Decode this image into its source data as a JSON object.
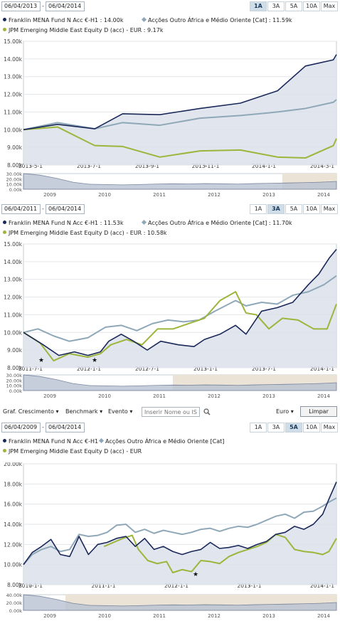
{
  "panels": [
    {
      "start_date": "06/04/2013",
      "end_date": "06/04/2014",
      "separator": "-",
      "active_range": "1A",
      "legend": [
        {
          "label": "Franklin MENA Fund N Acc €-H1 : 14.00k"
        },
        {
          "label": "Acções Outro África e Médio Oriente [Cat] : 11.59k"
        },
        {
          "label": "JPM Emerging Middle East Equity D (acc) - EUR : 9.17k"
        }
      ],
      "chart_data": {
        "type": "area",
        "x_ticks": [
          "2013-5-1",
          "2013-7-1",
          "2013-9-1",
          "2013-11-1",
          "2014-1-1",
          "2014-3-1"
        ],
        "y_ticks": [
          "8.00k",
          "9.00k",
          "10.00k",
          "11.00k",
          "12.00k",
          "13.00k",
          "14.00k",
          "15.00k"
        ],
        "xlim": [
          2013.26,
          2014.27
        ],
        "ylim": [
          8000,
          15000
        ],
        "series": [
          {
            "name": "Franklin MENA Fund N Acc €-H1",
            "x": [
              2013.26,
              2013.37,
              2013.49,
              2013.58,
              2013.7,
              2013.83,
              2013.96,
              2014.08,
              2014.17,
              2014.26,
              2014.27
            ],
            "y": [
              10000,
              10300,
              10050,
              10900,
              10850,
              11200,
              11500,
              12200,
              13600,
              13950,
              14250
            ]
          },
          {
            "name": "Acções Outro África e Médio Oriente [Cat]",
            "x": [
              2013.26,
              2013.37,
              2013.49,
              2013.58,
              2013.7,
              2013.83,
              2013.96,
              2014.08,
              2014.17,
              2014.26,
              2014.27
            ],
            "y": [
              10000,
              10400,
              10050,
              10400,
              10250,
              10650,
              10800,
              11000,
              11200,
              11550,
              11700
            ]
          },
          {
            "name": "JPM Emerging Middle East Equity D (acc) - EUR",
            "x": [
              2013.26,
              2013.37,
              2013.49,
              2013.58,
              2013.7,
              2013.83,
              2013.96,
              2014.08,
              2014.17,
              2014.26,
              2014.27
            ],
            "y": [
              10000,
              10150,
              9100,
              9050,
              8450,
              8800,
              8850,
              8450,
              8400,
              9100,
              9500
            ]
          }
        ],
        "navigator": {
          "x_ticks": [
            "2009",
            "2010",
            "2011",
            "2012",
            "2013",
            "2014"
          ],
          "y_ticks": [
            "30.00k",
            "20.00k",
            "10.00k",
            "0.00k"
          ]
        }
      }
    },
    {
      "start_date": "06/04/2011",
      "end_date": "06/04/2014",
      "separator": "-",
      "active_range": "3A",
      "legend": [
        {
          "label": "Franklin MENA Fund N Acc €-H1 : 11.53k"
        },
        {
          "label": "Acções Outro África e Médio Oriente [Cat] : 11.70k"
        },
        {
          "label": "JPM Emerging Middle East Equity D (acc) - EUR : 10.58k"
        }
      ],
      "chart_data": {
        "type": "area",
        "x_ticks": [
          "2011-7-1",
          "2012-1-1",
          "2012-7-1",
          "2013-1-1",
          "2013-7-1",
          "2014-1-1"
        ],
        "y_ticks": [
          "8.00k",
          "9.00k",
          "10.00k",
          "11.00k",
          "12.00k",
          "13.00k",
          "14.00k",
          "15.00k"
        ],
        "xlim": [
          2011.26,
          2014.27
        ],
        "ylim": [
          8000,
          15000
        ],
        "series": [
          {
            "name": "Franklin MENA Fund N Acc €-H1",
            "x": [
              2011.26,
              2011.45,
              2011.6,
              2011.75,
              2011.88,
              2012.0,
              2012.08,
              2012.2,
              2012.32,
              2012.45,
              2012.58,
              2012.75,
              2012.9,
              2013.0,
              2013.15,
              2013.3,
              2013.4,
              2013.55,
              2013.7,
              2013.85,
              2014.0,
              2014.1,
              2014.2,
              2014.27
            ],
            "y": [
              10000,
              9300,
              8700,
              8900,
              8700,
              8900,
              9500,
              9900,
              9500,
              9000,
              9500,
              9300,
              9200,
              9600,
              9900,
              10400,
              9900,
              11200,
              11400,
              11700,
              12700,
              13300,
              14200,
              14700
            ]
          },
          {
            "name": "Acções Outro África e Médio Oriente [Cat]",
            "x": [
              2011.26,
              2011.4,
              2011.55,
              2011.7,
              2011.88,
              2012.05,
              2012.2,
              2012.35,
              2012.5,
              2012.65,
              2012.8,
              2012.95,
              2013.1,
              2013.3,
              2013.4,
              2013.55,
              2013.7,
              2013.85,
              2014.0,
              2014.15,
              2014.27
            ],
            "y": [
              10000,
              10200,
              9800,
              9500,
              9700,
              10300,
              10400,
              10100,
              10500,
              10700,
              10600,
              10700,
              11200,
              11800,
              11500,
              11700,
              11600,
              12100,
              12300,
              12700,
              13200
            ]
          },
          {
            "name": "JPM Emerging Middle East Equity D (acc) - EUR",
            "x": [
              2011.26,
              2011.42,
              2011.55,
              2011.7,
              2011.88,
              2012.0,
              2012.1,
              2012.25,
              2012.4,
              2012.55,
              2012.7,
              2012.85,
              2013.0,
              2013.15,
              2013.3,
              2013.4,
              2013.5,
              2013.62,
              2013.75,
              2013.9,
              2014.05,
              2014.18,
              2014.27
            ],
            "y": [
              10000,
              9400,
              8400,
              8800,
              8600,
              8800,
              9300,
              9600,
              9300,
              10200,
              10200,
              10500,
              10800,
              11800,
              12300,
              11100,
              11000,
              10200,
              10800,
              10700,
              10200,
              10200,
              11600
            ]
          }
        ],
        "markers": [
          "★",
          "★"
        ],
        "navigator": {
          "x_ticks": [
            "2009",
            "2010",
            "2011",
            "2012",
            "2013",
            "2014"
          ],
          "y_ticks": [
            "30.00k",
            "20.00k",
            "10.00k",
            "0.00k"
          ]
        }
      }
    },
    {
      "start_date": "06/04/2009",
      "end_date": "06/04/2014",
      "separator": "-",
      "active_range": "5A",
      "legend": [
        {
          "label": "Franklin MENA Fund N Acc €-H1"
        },
        {
          "label": "Acções Outro África e Médio Oriente [Cat]"
        },
        {
          "label": "JPM Emerging Middle East Equity D (acc) - EUR"
        }
      ],
      "chart_data": {
        "type": "area",
        "x_ticks": [
          "2010-1-1",
          "2011-1-1",
          "2012-1-1",
          "2013-1-1",
          "2014-1-1"
        ],
        "y_ticks": [
          "8.00k",
          "10.00k",
          "12.00k",
          "14.00k",
          "16.00k",
          "18.00k",
          "20.00k"
        ],
        "xlim": [
          2009.26,
          2014.27
        ],
        "ylim": [
          8000,
          20000
        ],
        "series": [
          {
            "name": "Franklin MENA Fund N Acc €-H1",
            "x": [
              2009.26,
              2009.4,
              2009.55,
              2009.7,
              2009.85,
              2010.0,
              2010.15,
              2010.3,
              2010.45,
              2010.6,
              2010.75,
              2010.9,
              2011.05,
              2011.2,
              2011.35,
              2011.5,
              2011.65,
              2011.8,
              2011.95,
              2012.1,
              2012.25,
              2012.4,
              2012.55,
              2012.7,
              2012.85,
              2013.0,
              2013.15,
              2013.3,
              2013.45,
              2013.6,
              2013.75,
              2013.9,
              2014.05,
              2014.15,
              2014.27
            ],
            "y": [
              10000,
              11200,
              11800,
              12500,
              11000,
              10800,
              12800,
              11000,
              12000,
              12200,
              12600,
              12800,
              11800,
              12600,
              11500,
              11800,
              11300,
              11000,
              11300,
              11500,
              12200,
              11600,
              11700,
              11900,
              11600,
              12000,
              12300,
              13000,
              13200,
              13800,
              13500,
              14000,
              15000,
              16500,
              18200
            ]
          },
          {
            "name": "Acções Outro África e Médio Oriente [Cat]",
            "x": [
              2009.26,
              2009.4,
              2009.55,
              2009.7,
              2009.85,
              2010.0,
              2010.15,
              2010.3,
              2010.45,
              2010.6,
              2010.75,
              2010.9,
              2011.05,
              2011.2,
              2011.35,
              2011.5,
              2011.65,
              2011.8,
              2011.95,
              2012.1,
              2012.25,
              2012.4,
              2012.55,
              2012.7,
              2012.85,
              2013.0,
              2013.15,
              2013.3,
              2013.45,
              2013.6,
              2013.75,
              2013.9,
              2014.05,
              2014.15,
              2014.27
            ],
            "y": [
              10000,
              11000,
              11500,
              11800,
              11300,
              11500,
              13000,
              12800,
              12900,
              13200,
              13900,
              14000,
              13200,
              13500,
              13100,
              13400,
              13200,
              13000,
              13200,
              13500,
              13600,
              13300,
              13600,
              13800,
              13700,
              14000,
              14400,
              14800,
              15000,
              14600,
              15200,
              15300,
              15800,
              16200,
              16600
            ]
          },
          {
            "name": "JPM Emerging Middle East Equity D (acc) - EUR",
            "x": [
              2010.55,
              2010.7,
              2010.85,
              2011.0,
              2011.1,
              2011.25,
              2011.4,
              2011.55,
              2011.65,
              2011.8,
              2011.95,
              2012.1,
              2012.25,
              2012.4,
              2012.55,
              2012.7,
              2012.85,
              2013.0,
              2013.15,
              2013.3,
              2013.45,
              2013.6,
              2013.75,
              2013.9,
              2014.05,
              2014.15,
              2014.27
            ],
            "y": [
              11800,
              12200,
              12600,
              12900,
              11500,
              10400,
              10100,
              10300,
              9200,
              9500,
              9300,
              10400,
              10300,
              10100,
              10800,
              11200,
              11500,
              11800,
              12200,
              13000,
              12700,
              11500,
              11300,
              11200,
              11000,
              11300,
              12600
            ]
          }
        ],
        "markers": [
          "★"
        ],
        "navigator": {
          "x_ticks": [
            "2009",
            "2010",
            "2011",
            "2012",
            "2013",
            "2014"
          ],
          "y_ticks": [
            "40.00k",
            "20.00k",
            "0.00k"
          ]
        }
      }
    }
  ],
  "range_buttons": [
    "1A",
    "3A",
    "5A",
    "10A",
    "Max"
  ],
  "toolbar": {
    "growth_label": "Graf. Crescimento",
    "benchmark_label": "Benchmark",
    "event_label": "Evento",
    "search_placeholder": "Inserir Nome ou IS",
    "currency_label": "Euro",
    "clear_label": "Limpar"
  },
  "colors": {
    "franklin": "#1a2859",
    "category": "#8fa8b8",
    "jpm": "#9cb53a",
    "area": "#dce1ea",
    "grid": "#e3e6ea",
    "navigator_fill": "#b9c3d3",
    "navigator_selection": "#eae3d6"
  }
}
